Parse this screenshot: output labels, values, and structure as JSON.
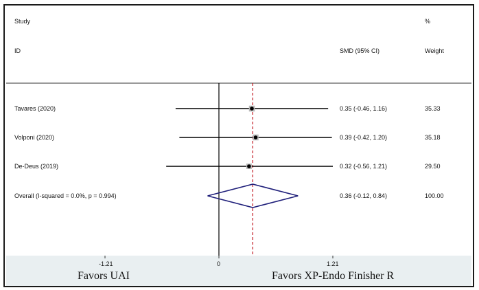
{
  "chart_data": {
    "type": "forest",
    "headers": {
      "study_line1": "Study",
      "study_line2": "ID",
      "effect": "SMD (95% CI)",
      "weight_line1": "%",
      "weight_line2": "Weight"
    },
    "studies": [
      {
        "label": "Tavares  (2020)",
        "estimate": 0.35,
        "ci_low": -0.46,
        "ci_high": 1.16,
        "ci_text": "0.35 (-0.46, 1.16)",
        "weight": "35.33"
      },
      {
        "label": "Volponi  (2020)",
        "estimate": 0.39,
        "ci_low": -0.42,
        "ci_high": 1.2,
        "ci_text": "0.39 (-0.42, 1.20)",
        "weight": "35.18"
      },
      {
        "label": "De-Deus  (2019)",
        "estimate": 0.32,
        "ci_low": -0.56,
        "ci_high": 1.21,
        "ci_text": "0.32 (-0.56, 1.21)",
        "weight": "29.50"
      }
    ],
    "overall": {
      "label": "Overall  (I-squared = 0.0%, p = 0.994)",
      "estimate": 0.36,
      "ci_low": -0.12,
      "ci_high": 0.84,
      "ci_text": "0.36 (-0.12, 0.84)",
      "weight": "100.00"
    },
    "x_axis": {
      "ticks": [
        -1.21,
        0,
        1.21
      ],
      "tick_labels": [
        "-1.21",
        "0",
        "1.21"
      ],
      "range": [
        -1.21,
        1.21
      ]
    },
    "favors_left": "Favors UAI",
    "favors_right": "Favors XP-Endo Finisher R",
    "colors": {
      "line": "#000000",
      "diamond": "#1f1f7a",
      "reference": "#c0141c",
      "footer": "#e9eff1"
    }
  }
}
